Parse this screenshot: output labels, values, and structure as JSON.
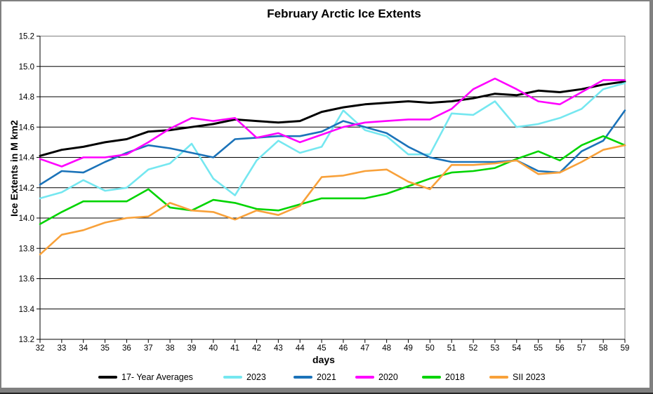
{
  "window_title": "February Arctic Ice Extents chart",
  "chart_data": {
    "type": "line",
    "title": "February Arctic Ice Extents",
    "xlabel": "days",
    "ylabel": "Ice Extents in M km2",
    "x": [
      32,
      33,
      34,
      35,
      36,
      37,
      38,
      39,
      40,
      41,
      42,
      43,
      44,
      45,
      46,
      47,
      48,
      49,
      50,
      51,
      52,
      53,
      54,
      55,
      56,
      57,
      58,
      59
    ],
    "xlim": [
      32,
      59
    ],
    "ylim": [
      13.2,
      15.2
    ],
    "y_ticks": [
      "15.2",
      "15.0",
      "14.8",
      "14.6",
      "14.4",
      "14.2",
      "14.0",
      "13.8",
      "13.6",
      "13.4",
      "13.2"
    ],
    "grid": "horizontal-black-lines",
    "legend_position": "bottom",
    "frame_color": "#808080",
    "series": [
      {
        "name": "17- Year Averages",
        "color": "#000000",
        "width": 3,
        "values": [
          14.41,
          14.45,
          14.47,
          14.5,
          14.52,
          14.57,
          14.58,
          14.6,
          14.62,
          14.65,
          14.64,
          14.63,
          14.64,
          14.7,
          14.73,
          14.75,
          14.76,
          14.77,
          14.76,
          14.77,
          14.79,
          14.82,
          14.81,
          14.84,
          14.83,
          14.85,
          14.88,
          14.9
        ]
      },
      {
        "name": "2023",
        "color": "#75E7F0",
        "width": 2.6,
        "values": [
          14.13,
          14.17,
          14.25,
          14.18,
          14.2,
          14.32,
          14.36,
          14.49,
          14.26,
          14.15,
          14.38,
          14.51,
          14.43,
          14.47,
          14.71,
          14.58,
          14.54,
          14.42,
          14.42,
          14.69,
          14.68,
          14.77,
          14.6,
          14.62,
          14.66,
          14.72,
          14.85,
          14.89
        ]
      },
      {
        "name": "2021",
        "color": "#1B73B9",
        "width": 2.6,
        "values": [
          14.22,
          14.31,
          14.3,
          14.37,
          14.43,
          14.48,
          14.46,
          14.43,
          14.4,
          14.52,
          14.53,
          14.54,
          14.54,
          14.57,
          14.64,
          14.6,
          14.56,
          14.47,
          14.4,
          14.37,
          14.37,
          14.37,
          14.38,
          14.31,
          14.3,
          14.44,
          14.51,
          14.71
        ]
      },
      {
        "name": "2020",
        "color": "#FF00FF",
        "width": 2.6,
        "values": [
          14.39,
          14.34,
          14.4,
          14.4,
          14.42,
          14.5,
          14.59,
          14.66,
          14.64,
          14.66,
          14.53,
          14.56,
          14.5,
          14.55,
          14.6,
          14.63,
          14.64,
          14.65,
          14.65,
          14.72,
          14.85,
          14.92,
          14.85,
          14.77,
          14.75,
          14.83,
          14.91,
          14.91
        ]
      },
      {
        "name": "2018",
        "color": "#00D400",
        "width": 2.6,
        "values": [
          13.96,
          14.04,
          14.11,
          14.11,
          14.11,
          14.19,
          14.07,
          14.05,
          14.12,
          14.1,
          14.06,
          14.05,
          14.09,
          14.13,
          14.13,
          14.13,
          14.16,
          14.21,
          14.26,
          14.3,
          14.31,
          14.33,
          14.39,
          14.44,
          14.38,
          14.48,
          14.54,
          14.48
        ]
      },
      {
        "name": "SII 2023",
        "color": "#F8A13A",
        "width": 2.6,
        "values": [
          13.76,
          13.89,
          13.92,
          13.97,
          14.0,
          14.01,
          14.1,
          14.05,
          14.04,
          13.99,
          14.05,
          14.02,
          14.08,
          14.27,
          14.28,
          14.31,
          14.32,
          14.24,
          14.19,
          14.35,
          14.35,
          14.36,
          14.38,
          14.29,
          14.3,
          14.37,
          14.45,
          14.48
        ]
      }
    ]
  }
}
